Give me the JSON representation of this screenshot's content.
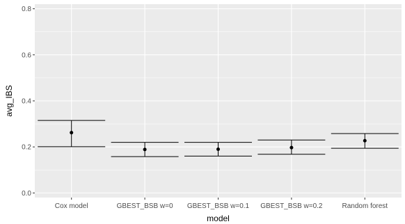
{
  "chart_data": {
    "type": "errorbar",
    "title": "",
    "xlabel": "model",
    "ylabel": "avg_IBS",
    "categories": [
      "Cox model",
      "GBEST_BSB w=0",
      "GBEST_BSB w=0.1",
      "GBEST_BSB w=0.2",
      "Random forest"
    ],
    "series": [
      {
        "values": [
          0.262,
          0.189,
          0.19,
          0.197,
          0.227
        ],
        "lower": [
          0.201,
          0.158,
          0.16,
          0.168,
          0.194
        ],
        "upper": [
          0.315,
          0.22,
          0.22,
          0.23,
          0.258
        ]
      }
    ],
    "yticks": [
      "0.0",
      "0.2",
      "0.4",
      "0.6",
      "0.8"
    ],
    "ylim": [
      -0.02,
      0.82
    ],
    "grid": true,
    "panel_background": "#EBEBEB",
    "grid_color": "#FFFFFF",
    "mark_color": "#000000"
  }
}
